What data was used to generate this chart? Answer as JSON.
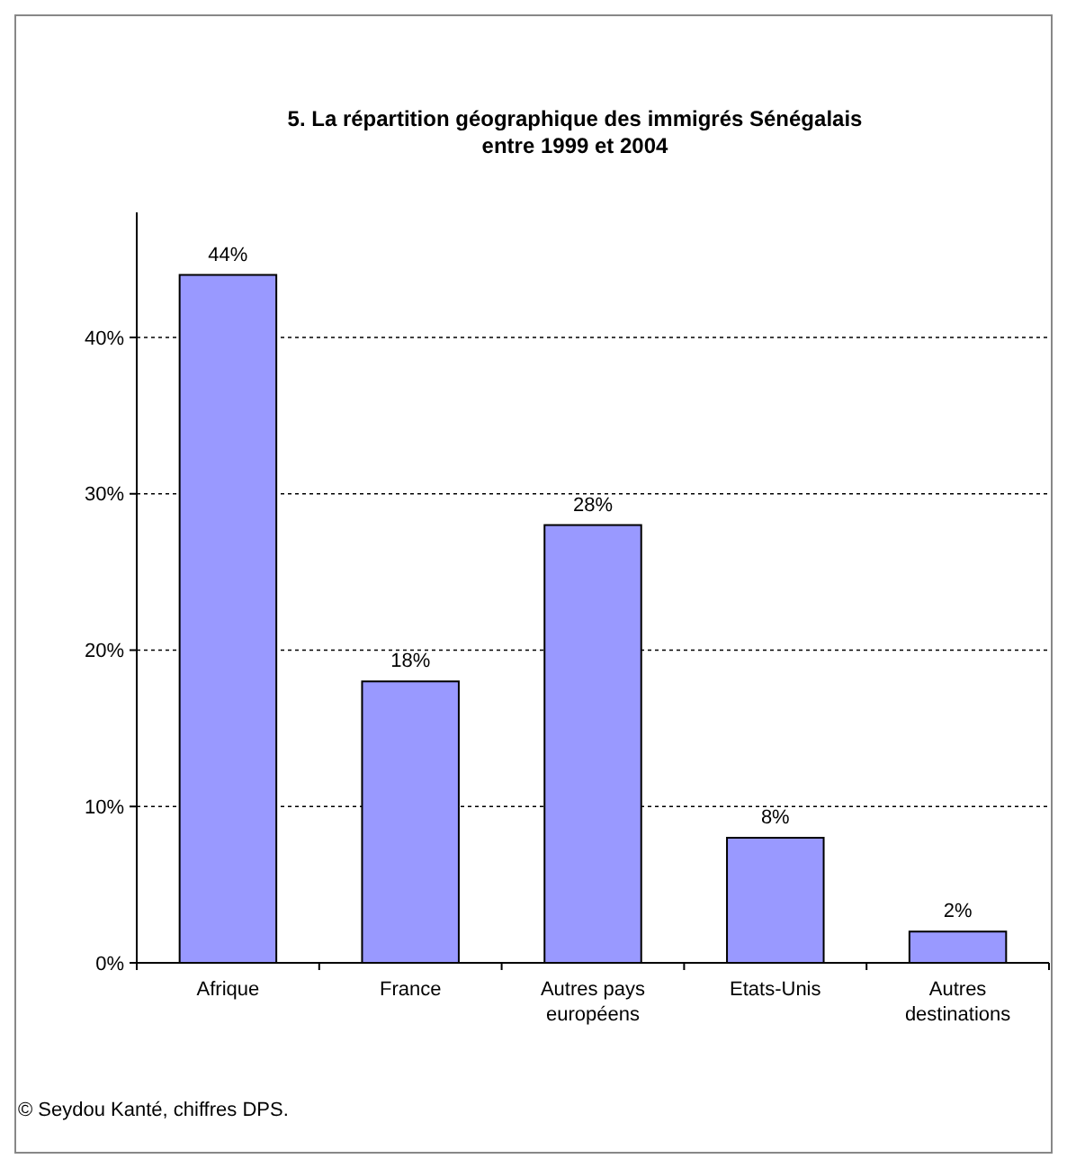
{
  "chart_data": {
    "type": "bar",
    "title": "5.  La répartition géographique des immigrés Sénégalais\nentre 1999 et 2004",
    "categories": [
      "Afrique",
      "France",
      "Autres pays\neuropéens",
      "Etats-Unis",
      "Autres\ndestinations"
    ],
    "values": [
      44,
      18,
      28,
      8,
      2
    ],
    "color": "#9999ff",
    "value_labels": [
      "44%",
      "18%",
      "28%",
      "8%",
      "2%"
    ],
    "ylim": [
      0,
      48
    ],
    "yticks": [
      {
        "value": 0,
        "label": "0%"
      },
      {
        "value": 10,
        "label": "10%"
      },
      {
        "value": 20,
        "label": "20%"
      },
      {
        "value": 30,
        "label": "30%"
      },
      {
        "value": 40,
        "label": "40%"
      }
    ],
    "grid": "y",
    "annotations": [
      "© Seydou Kanté, chiffres DPS."
    ]
  }
}
